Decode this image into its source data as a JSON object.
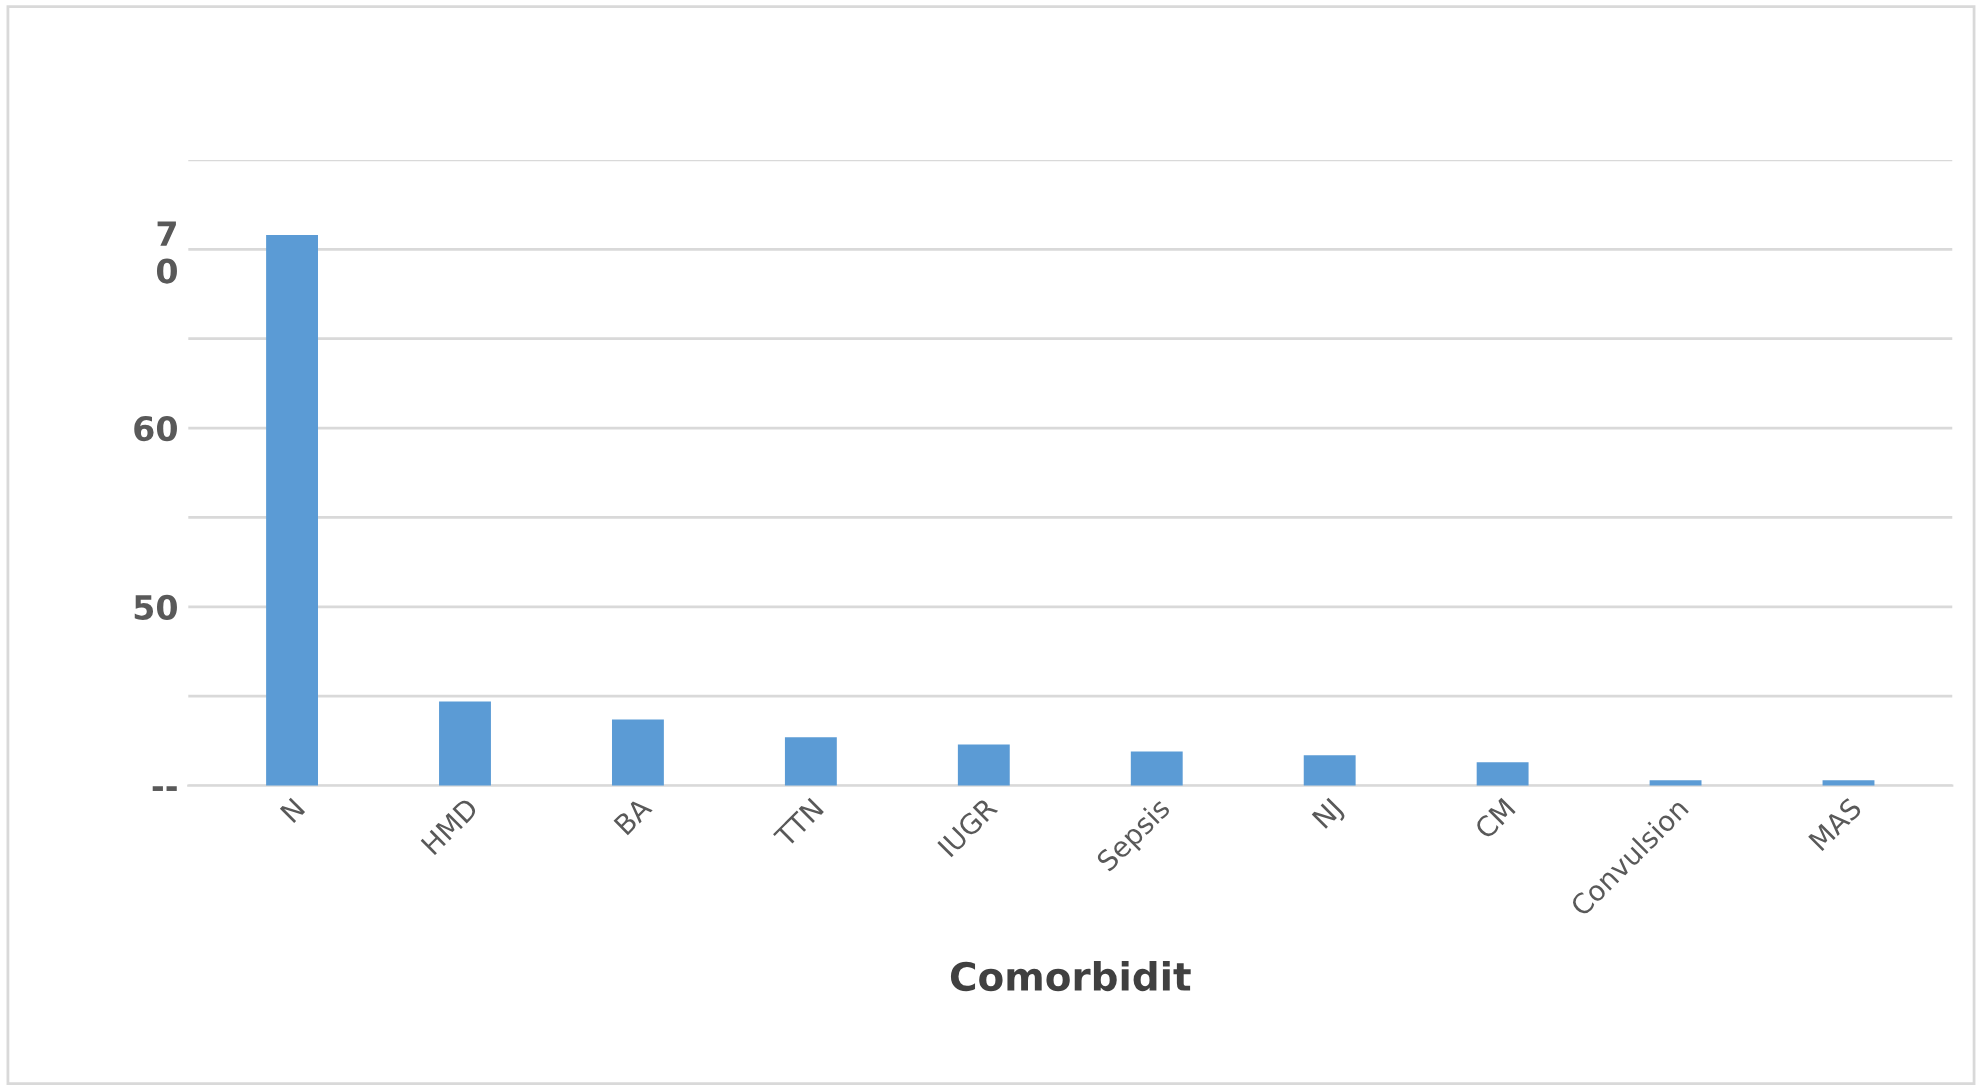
{
  "chart_data": {
    "type": "bar",
    "xlabel": "Comorbidit",
    "categories": [
      "N",
      "HMD",
      "BA",
      "TTN",
      "IUGR",
      "Sepsis",
      "NJ",
      "CM",
      "Convulsion",
      "MAS"
    ],
    "values": [
      70.8,
      44.7,
      43.7,
      42.7,
      42.3,
      41.9,
      41.7,
      41.3,
      40.3,
      40.3
    ],
    "color": "#5b9bd5",
    "ylim": [
      40,
      75
    ],
    "yticks": [
      {
        "value": 40,
        "label": "--"
      },
      {
        "value": 45,
        "label": null
      },
      50,
      {
        "value": 55,
        "label": null
      },
      60,
      {
        "value": 65,
        "label": null
      },
      {
        "value": 70,
        "label": "7\n0"
      },
      {
        "value": 75,
        "label": null
      }
    ],
    "grid": "y",
    "legend": false
  }
}
